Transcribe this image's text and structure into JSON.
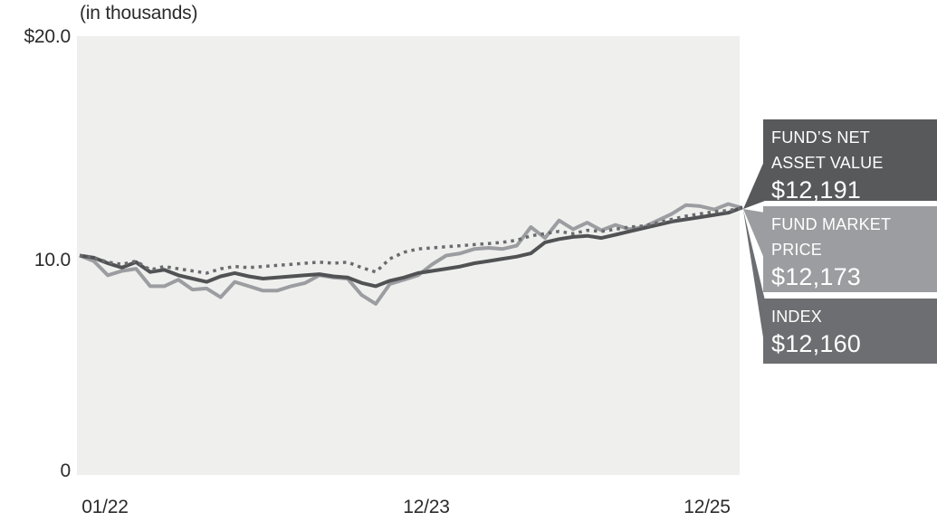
{
  "header": {
    "units_label": "(in thousands)"
  },
  "chart_data": {
    "type": "line",
    "title": "(in thousands)",
    "xlabel": "",
    "ylabel": "",
    "ylim": [
      0,
      20
    ],
    "months": 48,
    "grid": false,
    "plot_bg": "#efefee",
    "x_tick_labels": [
      "01/22",
      "12/23",
      "12/25"
    ],
    "y_tick_labels": [
      "$20.0",
      "10.0",
      "0"
    ],
    "legend_position": "right-callouts",
    "series": [
      {
        "name": "Fund Market Price",
        "style": "solid",
        "color": "#9b9da0",
        "final_label": "$12,173",
        "values": [
          10.0,
          9.75,
          9.1,
          9.3,
          9.4,
          8.6,
          8.6,
          8.9,
          8.45,
          8.5,
          8.1,
          8.8,
          8.6,
          8.4,
          8.4,
          8.6,
          8.75,
          9.1,
          9.0,
          8.95,
          8.2,
          7.8,
          8.7,
          8.9,
          9.1,
          9.6,
          10.0,
          10.1,
          10.3,
          10.35,
          10.3,
          10.45,
          11.3,
          10.8,
          11.6,
          11.2,
          11.5,
          11.15,
          11.4,
          11.2,
          11.3,
          11.6,
          11.9,
          12.3,
          12.25,
          12.1,
          12.35,
          12.17
        ]
      },
      {
        "name": "Fund's Net Asset Value",
        "style": "solid",
        "color": "#515254",
        "final_label": "$12,191",
        "values": [
          10.0,
          9.9,
          9.65,
          9.45,
          9.7,
          9.25,
          9.35,
          9.1,
          8.95,
          8.8,
          9.05,
          9.2,
          9.05,
          8.95,
          9.0,
          9.05,
          9.1,
          9.15,
          9.05,
          9.0,
          8.75,
          8.6,
          8.85,
          9.0,
          9.2,
          9.3,
          9.4,
          9.5,
          9.65,
          9.75,
          9.85,
          9.95,
          10.1,
          10.6,
          10.75,
          10.85,
          10.9,
          10.8,
          10.95,
          11.1,
          11.25,
          11.4,
          11.55,
          11.65,
          11.75,
          11.85,
          11.95,
          12.19
        ]
      },
      {
        "name": "Index",
        "style": "dotted",
        "color": "#6a6b6e",
        "final_label": "$12,160",
        "values": [
          10.0,
          9.9,
          9.7,
          9.6,
          9.75,
          9.35,
          9.5,
          9.4,
          9.3,
          9.2,
          9.4,
          9.5,
          9.45,
          9.5,
          9.55,
          9.6,
          9.65,
          9.7,
          9.65,
          9.7,
          9.45,
          9.25,
          9.85,
          10.15,
          10.3,
          10.35,
          10.4,
          10.45,
          10.5,
          10.55,
          10.6,
          10.7,
          10.9,
          11.0,
          11.1,
          11.0,
          11.15,
          11.1,
          11.2,
          11.3,
          11.35,
          11.5,
          11.65,
          11.8,
          11.9,
          12.0,
          12.05,
          12.16
        ]
      }
    ]
  },
  "legend": {
    "boxes": [
      {
        "title": "FUND’S NET ASSET VALUE",
        "value": "$12,191",
        "bg": "#58595b",
        "text_color": "#ffffff"
      },
      {
        "title": "FUND MARKET PRICE",
        "value": "$12,173",
        "bg": "#9b9da0",
        "text_color": "#ffffff"
      },
      {
        "title": "INDEX",
        "value": "$12,160",
        "bg": "#6d6e71",
        "text_color": "#ffffff"
      }
    ]
  }
}
